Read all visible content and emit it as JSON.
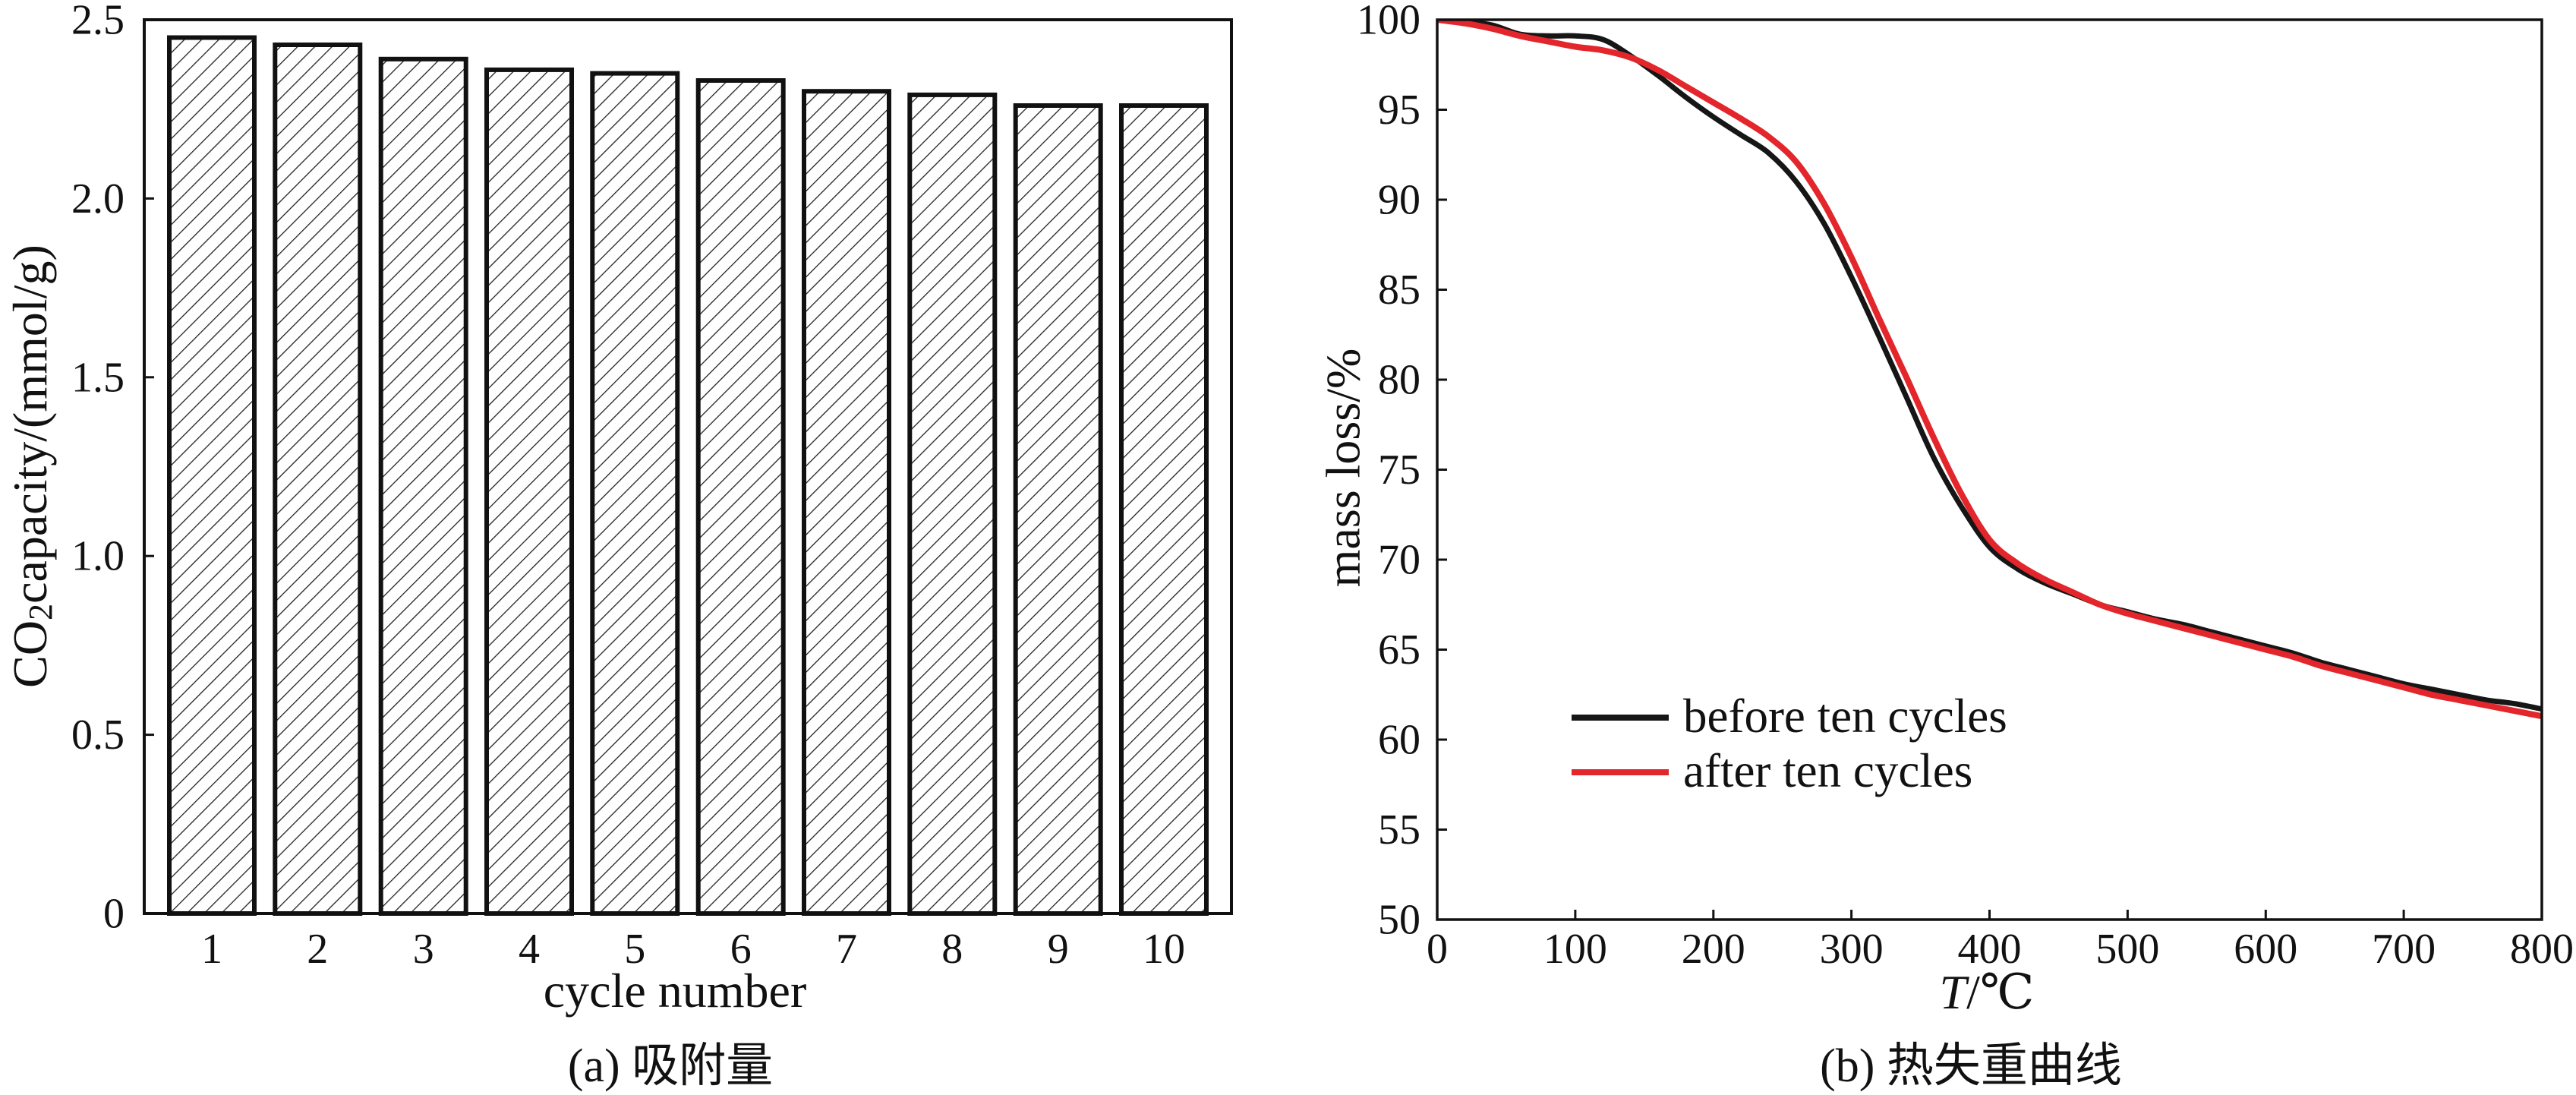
{
  "chart_data": [
    {
      "type": "bar",
      "caption": "(a) 吸附量",
      "categories": [
        "1",
        "2",
        "3",
        "4",
        "5",
        "6",
        "7",
        "8",
        "9",
        "10"
      ],
      "values": [
        2.45,
        2.43,
        2.39,
        2.36,
        2.35,
        2.33,
        2.3,
        2.29,
        2.26,
        2.26
      ],
      "xlabel": "cycle number",
      "ylabel": {
        "prefix": "CO",
        "subscript": "2",
        "suffix": "capacity/(mmol/g)"
      },
      "ylim": [
        0,
        2.5
      ],
      "yticks": [
        "0",
        "0.5",
        "1.0",
        "1.5",
        "2.0",
        "2.5"
      ],
      "grid": false,
      "bar_fill": "#ffffff",
      "bar_stroke": "#111111",
      "hatch_color": "#222222"
    },
    {
      "type": "line",
      "caption": "(b) 热失重曲线",
      "xlabel": {
        "variable": "T",
        "unit": "/℃"
      },
      "ylabel": "mass loss/%",
      "xlim": [
        0,
        800
      ],
      "ylim": [
        50,
        100
      ],
      "xticks": [
        "0",
        "100",
        "200",
        "300",
        "400",
        "500",
        "600",
        "700",
        "800"
      ],
      "yticks": [
        "50",
        "55",
        "60",
        "65",
        "70",
        "75",
        "80",
        "85",
        "90",
        "95",
        "100"
      ],
      "grid": false,
      "x": [
        0,
        20,
        40,
        60,
        80,
        100,
        120,
        140,
        160,
        180,
        200,
        220,
        240,
        260,
        280,
        300,
        320,
        340,
        360,
        380,
        400,
        420,
        440,
        460,
        480,
        500,
        520,
        540,
        560,
        580,
        600,
        620,
        640,
        660,
        680,
        700,
        720,
        740,
        760,
        780,
        800
      ],
      "series": [
        {
          "name": "before ten cycles",
          "color": "#161616",
          "y": [
            100.0,
            99.9,
            99.7,
            99.2,
            99.1,
            99.1,
            98.9,
            98.0,
            96.9,
            95.7,
            94.6,
            93.6,
            92.6,
            91.0,
            88.7,
            85.7,
            82.4,
            79.0,
            75.6,
            72.9,
            70.7,
            69.5,
            68.7,
            68.1,
            67.5,
            67.1,
            66.7,
            66.4,
            66.0,
            65.6,
            65.2,
            64.8,
            64.3,
            63.9,
            63.5,
            63.1,
            62.8,
            62.5,
            62.2,
            62.0,
            61.7
          ]
        },
        {
          "name": "after ten cycles",
          "color": "#e3262b",
          "y": [
            100.0,
            99.8,
            99.5,
            99.1,
            98.8,
            98.5,
            98.3,
            97.9,
            97.2,
            96.3,
            95.4,
            94.5,
            93.5,
            92.1,
            89.8,
            86.8,
            83.4,
            80.1,
            76.7,
            73.6,
            71.1,
            69.8,
            68.9,
            68.2,
            67.5,
            67.0,
            66.6,
            66.2,
            65.8,
            65.4,
            65.0,
            64.6,
            64.1,
            63.7,
            63.3,
            62.9,
            62.5,
            62.2,
            61.9,
            61.6,
            61.3
          ]
        }
      ]
    }
  ]
}
